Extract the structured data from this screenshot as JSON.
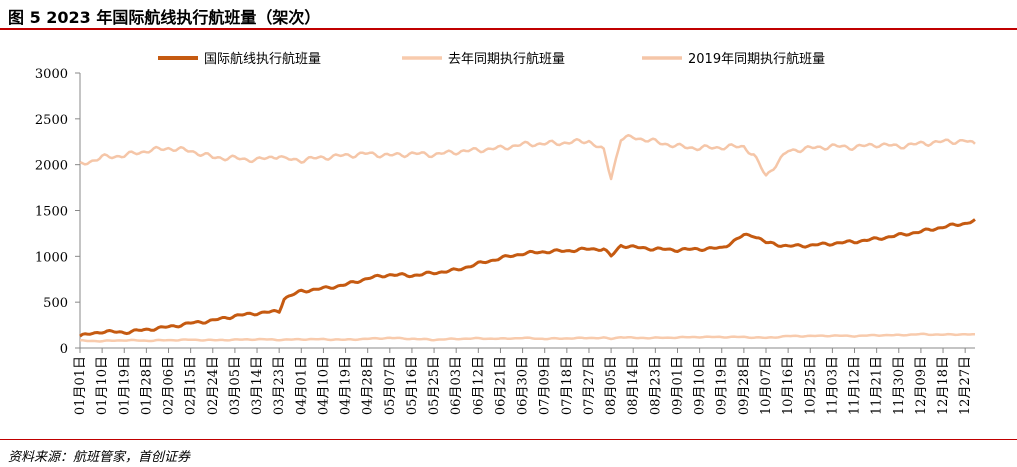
{
  "figure": {
    "title": "图  5 2023 年国际航线执行航班量（架次）",
    "source": "资料来源：航班管家，首创证券"
  },
  "chart_data": {
    "type": "line",
    "title": "",
    "xlabel": "",
    "ylabel": "",
    "ylim": [
      0,
      3000
    ],
    "yticks": [
      0,
      500,
      1000,
      1500,
      2000,
      2500,
      3000
    ],
    "grid": false,
    "legend_position": "top-center",
    "x_tick_labels": [
      "01月01日",
      "01月10日",
      "01月19日",
      "01月28日",
      "02月06日",
      "02月15日",
      "02月24日",
      "03月05日",
      "03月14日",
      "03月23日",
      "04月01日",
      "04月10日",
      "04月19日",
      "04月28日",
      "05月07日",
      "05月16日",
      "05月25日",
      "06月03日",
      "06月12日",
      "06月21日",
      "06月30日",
      "07月09日",
      "07月18日",
      "07月27日",
      "08月05日",
      "08月14日",
      "08月23日",
      "09月01日",
      "09月10日",
      "09月19日",
      "09月28日",
      "10月07日",
      "10月16日",
      "10月25日",
      "11月03日",
      "11月12日",
      "11月21日",
      "11月30日",
      "12月09日",
      "12月18日",
      "12月27日"
    ],
    "x": [
      "01-01",
      "01-10",
      "01-19",
      "01-28",
      "02-06",
      "02-15",
      "02-24",
      "03-05",
      "03-14",
      "03-23",
      "03-25",
      "04-01",
      "04-10",
      "04-19",
      "04-28",
      "05-07",
      "05-16",
      "05-25",
      "06-03",
      "06-12",
      "06-21",
      "06-30",
      "07-09",
      "07-18",
      "07-27",
      "08-02",
      "08-05",
      "08-09",
      "08-14",
      "08-23",
      "09-01",
      "09-10",
      "09-19",
      "09-28",
      "10-02",
      "10-07",
      "10-16",
      "10-25",
      "11-03",
      "11-12",
      "11-21",
      "11-30",
      "12-09",
      "12-18",
      "12-27",
      "12-31"
    ],
    "series": [
      {
        "name": "国际航线执行航班量",
        "color": "#c55a11",
        "values": [
          130,
          180,
          170,
          200,
          230,
          270,
          300,
          350,
          380,
          400,
          540,
          620,
          650,
          690,
          760,
          800,
          790,
          820,
          850,
          920,
          980,
          1030,
          1050,
          1060,
          1080,
          1080,
          1000,
          1120,
          1100,
          1080,
          1070,
          1080,
          1090,
          1230,
          1230,
          1150,
          1110,
          1120,
          1140,
          1160,
          1190,
          1230,
          1270,
          1320,
          1360,
          1390
        ]
      },
      {
        "name": "去年同期执行航班量",
        "color": "#f8cbad",
        "values": [
          80,
          75,
          85,
          80,
          85,
          90,
          85,
          90,
          95,
          90,
          90,
          95,
          95,
          90,
          100,
          110,
          100,
          90,
          100,
          105,
          100,
          110,
          100,
          105,
          110,
          110,
          100,
          120,
          110,
          110,
          115,
          120,
          120,
          120,
          115,
          110,
          130,
          130,
          135,
          130,
          140,
          140,
          150,
          145,
          150,
          145
        ]
      },
      {
        "name": "2019年同期执行航班量",
        "color": "#f5c6a8",
        "values": [
          2000,
          2080,
          2100,
          2150,
          2180,
          2150,
          2080,
          2070,
          2050,
          2100,
          2060,
          2050,
          2080,
          2100,
          2120,
          2100,
          2120,
          2110,
          2140,
          2160,
          2180,
          2220,
          2230,
          2240,
          2260,
          2150,
          1860,
          2280,
          2300,
          2250,
          2200,
          2180,
          2190,
          2200,
          2100,
          1880,
          2150,
          2180,
          2200,
          2190,
          2220,
          2200,
          2230,
          2250,
          2260,
          2220
        ]
      }
    ]
  }
}
